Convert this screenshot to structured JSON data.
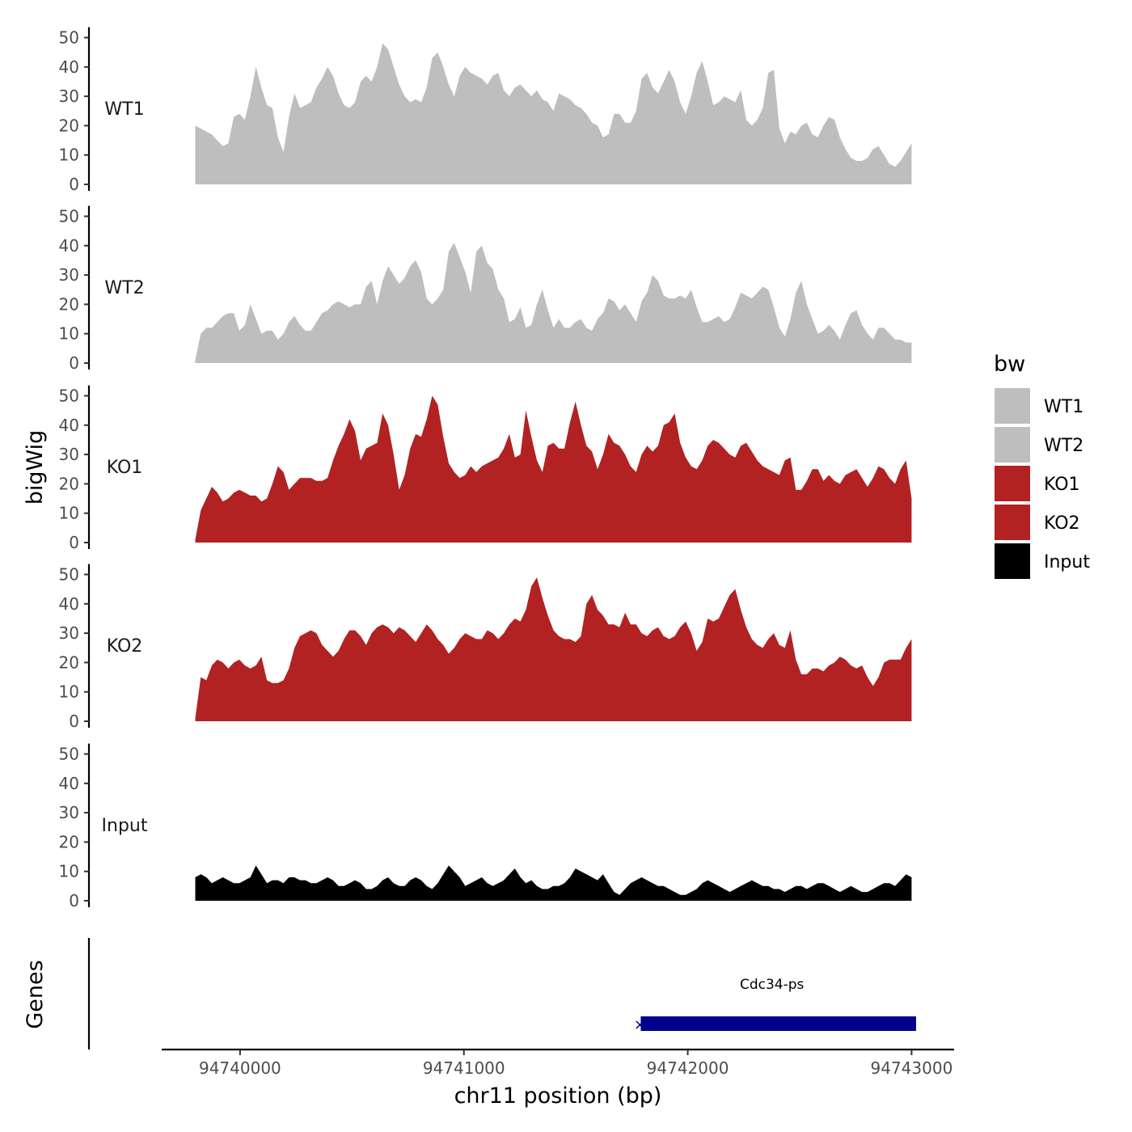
{
  "chart_data": {
    "type": "area",
    "chromosome": "chr11",
    "xlabel": "chr11 position (bp)",
    "ylabel": "bigWig",
    "genes_label": "Genes",
    "xlim": [
      94739650,
      94743190
    ],
    "x_range": [
      94739800,
      94743000
    ],
    "xticks": [
      94740000,
      94741000,
      94742000,
      94743000
    ],
    "ylim": [
      0,
      53
    ],
    "yticks": [
      0,
      10,
      20,
      30,
      40,
      50
    ],
    "legend": {
      "title": "bw",
      "position": "right"
    },
    "series": [
      {
        "name": "WT1",
        "color": "#BEBEBE",
        "values": [
          20,
          19,
          18,
          17,
          15,
          13,
          14,
          23,
          24,
          22,
          30,
          40,
          33,
          27,
          26,
          16,
          11,
          23,
          31,
          26,
          27,
          28,
          33,
          36,
          40,
          37,
          31,
          27,
          26,
          28,
          35,
          37,
          35,
          40,
          48,
          46,
          40,
          34,
          30,
          28,
          29,
          28,
          33,
          43,
          45,
          40,
          34,
          30,
          37,
          40,
          38,
          37,
          36,
          34,
          37,
          38,
          32,
          30,
          33,
          34,
          32,
          30,
          32,
          29,
          28,
          25,
          31,
          30,
          29,
          27,
          26,
          24,
          21,
          20,
          16,
          17,
          24,
          24,
          21,
          21,
          25,
          36,
          38,
          33,
          31,
          35,
          39,
          35,
          28,
          24,
          30,
          38,
          42,
          35,
          27,
          28,
          30,
          29,
          28,
          32,
          22,
          20,
          22,
          26,
          38,
          39,
          19,
          14,
          18,
          17,
          20,
          21,
          17,
          16,
          20,
          23,
          22,
          16,
          12,
          9,
          8,
          8,
          9,
          12,
          13,
          10,
          7,
          6,
          8,
          11,
          14
        ]
      },
      {
        "name": "WT2",
        "color": "#BEBEBE",
        "values": [
          1,
          10,
          12,
          12,
          14,
          16,
          17,
          17,
          11,
          13,
          20,
          15,
          10,
          11,
          11,
          8,
          10,
          14,
          16,
          13,
          11,
          11,
          14,
          17,
          18,
          20,
          21,
          20,
          19,
          20,
          20,
          26,
          28,
          20,
          28,
          33,
          30,
          27,
          29,
          33,
          35,
          31,
          22,
          20,
          22,
          25,
          38,
          41,
          36,
          31,
          24,
          38,
          40,
          34,
          32,
          25,
          22,
          14,
          15,
          19,
          12,
          13,
          20,
          25,
          18,
          12,
          15,
          12,
          12,
          14,
          15,
          12,
          11,
          15,
          17,
          22,
          21,
          18,
          20,
          17,
          14,
          21,
          24,
          30,
          28,
          23,
          22,
          22,
          23,
          22,
          25,
          19,
          14,
          14,
          15,
          16,
          14,
          15,
          19,
          24,
          23,
          22,
          24,
          26,
          25,
          19,
          12,
          9,
          15,
          24,
          28,
          20,
          15,
          10,
          11,
          13,
          11,
          8,
          13,
          17,
          18,
          13,
          10,
          8,
          12,
          12,
          10,
          8,
          8,
          7,
          7
        ]
      },
      {
        "name": "KO1",
        "color": "#B22222",
        "values": [
          1,
          11,
          15,
          19,
          17,
          14,
          15,
          17,
          18,
          17,
          16,
          16,
          14,
          15,
          20,
          26,
          24,
          18,
          20,
          22,
          22,
          22,
          21,
          21,
          22,
          28,
          33,
          37,
          42,
          38,
          28,
          32,
          33,
          34,
          44,
          40,
          30,
          18,
          23,
          32,
          37,
          36,
          42,
          50,
          47,
          36,
          27,
          24,
          22,
          23,
          26,
          24,
          26,
          27,
          28,
          29,
          32,
          37,
          29,
          30,
          45,
          36,
          28,
          24,
          33,
          34,
          32,
          32,
          41,
          48,
          40,
          33,
          31,
          25,
          30,
          37,
          34,
          33,
          30,
          26,
          24,
          30,
          33,
          31,
          33,
          40,
          41,
          44,
          34,
          29,
          26,
          25,
          28,
          33,
          35,
          34,
          32,
          30,
          29,
          33,
          34,
          31,
          28,
          26,
          25,
          24,
          23,
          28,
          29,
          18,
          18,
          21,
          25,
          25,
          21,
          23,
          21,
          20,
          23,
          24,
          25,
          22,
          19,
          22,
          26,
          25,
          22,
          20,
          25,
          28,
          15
        ]
      },
      {
        "name": "KO2",
        "color": "#B22222",
        "values": [
          1,
          15,
          14,
          19,
          21,
          20,
          18,
          20,
          21,
          19,
          18,
          19,
          22,
          14,
          13,
          13,
          14,
          18,
          25,
          29,
          30,
          31,
          30,
          26,
          24,
          22,
          24,
          28,
          31,
          31,
          29,
          26,
          30,
          32,
          33,
          32,
          30,
          32,
          31,
          29,
          27,
          30,
          33,
          31,
          28,
          26,
          23,
          25,
          28,
          30,
          29,
          28,
          28,
          31,
          30,
          28,
          30,
          33,
          35,
          34,
          38,
          46,
          49,
          42,
          36,
          31,
          29,
          28,
          28,
          27,
          29,
          40,
          43,
          38,
          36,
          33,
          33,
          32,
          37,
          33,
          33,
          30,
          29,
          31,
          32,
          29,
          28,
          29,
          32,
          34,
          30,
          24,
          27,
          35,
          34,
          35,
          39,
          43,
          45,
          38,
          32,
          28,
          26,
          25,
          28,
          30,
          26,
          25,
          31,
          21,
          16,
          16,
          18,
          18,
          17,
          19,
          20,
          22,
          21,
          19,
          18,
          19,
          15,
          12,
          15,
          20,
          21,
          21,
          21,
          25,
          28
        ]
      },
      {
        "name": "Input",
        "color": "#000000",
        "values": [
          8,
          9,
          8,
          6,
          7,
          8,
          7,
          6,
          6,
          7,
          8,
          12,
          9,
          6,
          7,
          7,
          6,
          8,
          8,
          7,
          7,
          6,
          6,
          7,
          8,
          7,
          5,
          5,
          6,
          7,
          6,
          4,
          4,
          5,
          7,
          8,
          6,
          5,
          5,
          7,
          8,
          7,
          5,
          4,
          6,
          9,
          12,
          10,
          8,
          5,
          6,
          7,
          8,
          6,
          5,
          6,
          7,
          9,
          11,
          8,
          6,
          7,
          5,
          4,
          4,
          5,
          5,
          6,
          8,
          11,
          10,
          9,
          8,
          7,
          9,
          6,
          3,
          2,
          4,
          6,
          7,
          8,
          7,
          6,
          5,
          5,
          4,
          3,
          2,
          2,
          3,
          4,
          6,
          7,
          6,
          5,
          4,
          3,
          4,
          5,
          6,
          7,
          6,
          5,
          5,
          4,
          4,
          3,
          4,
          5,
          5,
          4,
          5,
          6,
          6,
          5,
          4,
          3,
          4,
          5,
          4,
          3,
          3,
          4,
          5,
          6,
          6,
          5,
          7,
          9,
          8
        ]
      }
    ],
    "genes": [
      {
        "name": "Cdc34-ps",
        "start": 94741790,
        "end": 94743020,
        "color": "#00008B"
      }
    ]
  }
}
